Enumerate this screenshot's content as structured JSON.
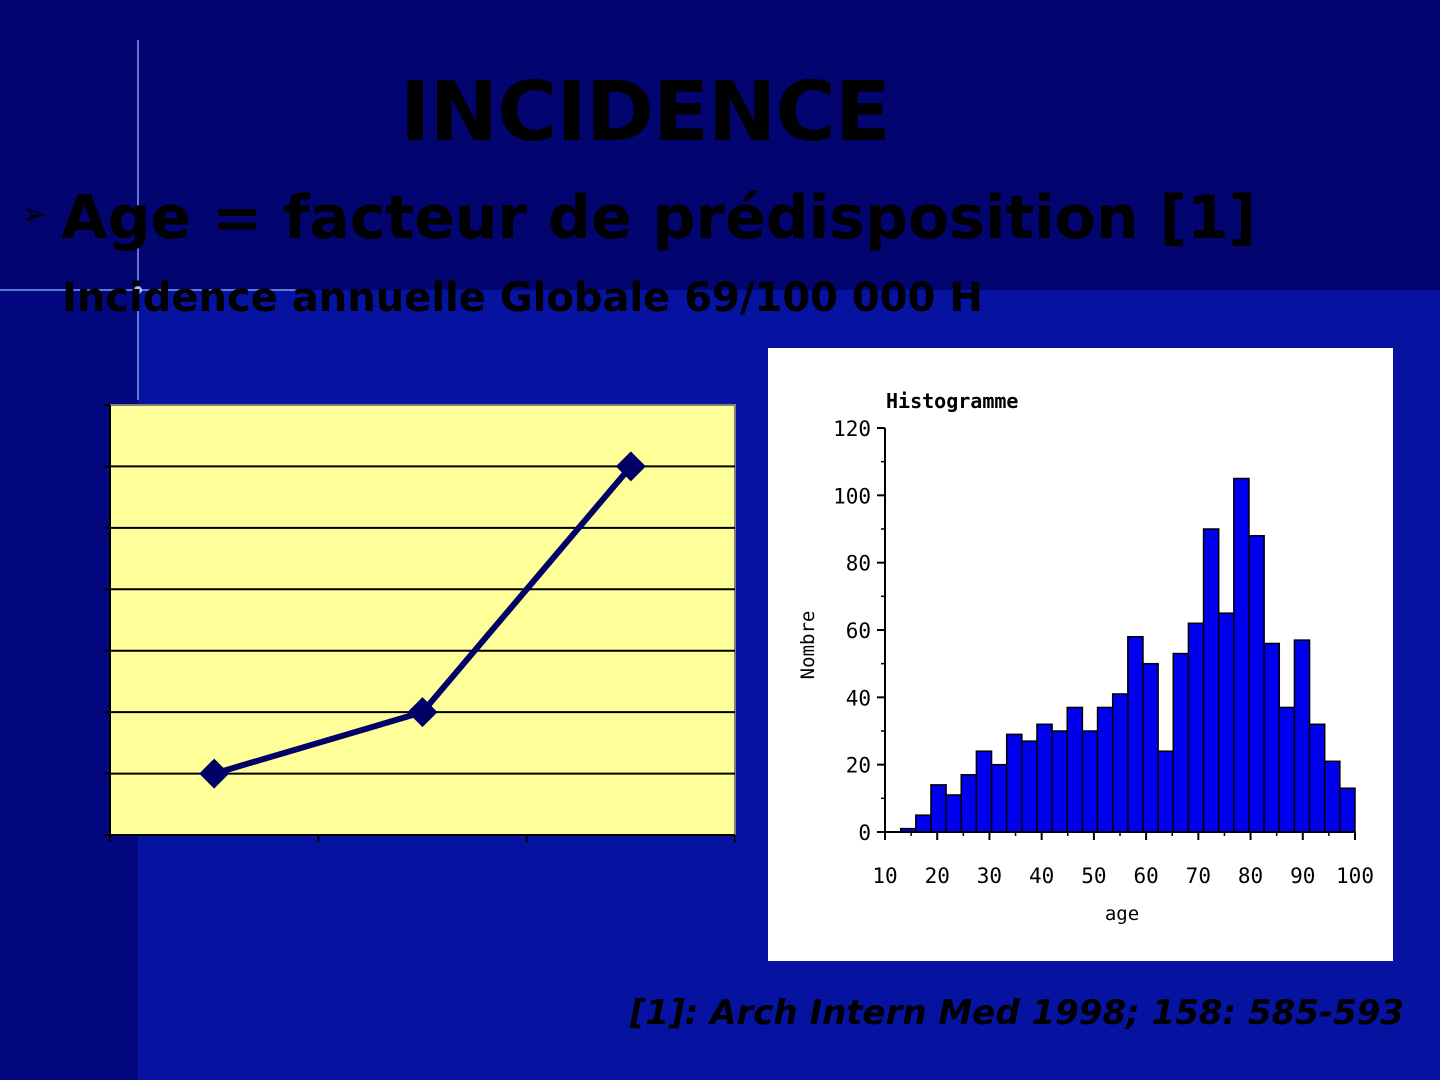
{
  "slide": {
    "title": "INCIDENCE",
    "bullet_marker": "➢",
    "bullet": "Age = facteur de prédisposition [1]",
    "subtitle": "Incidence annuelle Globale 69/100 000 H",
    "reference": "[1]: Arch Intern Med 1998; 158: 585-593"
  },
  "colors": {
    "background": "#050a85",
    "line_plot_area": "#ffff99",
    "line_series": "#000066",
    "hist_bars": "#0000ee"
  },
  "chart_data": [
    {
      "type": "line",
      "title": "",
      "xlabel": "",
      "ylabel": "",
      "categories": [
        "",
        "",
        ""
      ],
      "values": [
        1,
        2,
        6
      ],
      "ylim": [
        0,
        7
      ],
      "y_gridlines": 7,
      "x_ticks": 3,
      "grid": true,
      "legend": "none",
      "marker": "diamond"
    },
    {
      "type": "bar",
      "title": "Histogramme",
      "xlabel": "age",
      "ylabel": "Nombre",
      "xlim": [
        10,
        100
      ],
      "ylim": [
        0,
        120
      ],
      "x_ticks": [
        10,
        20,
        30,
        40,
        50,
        60,
        70,
        80,
        90,
        100
      ],
      "y_ticks": [
        0,
        20,
        40,
        60,
        80,
        100,
        120
      ],
      "bin_width": 2.9,
      "bin_start": 13,
      "values": [
        1,
        5,
        14,
        11,
        17,
        24,
        20,
        29,
        27,
        32,
        30,
        37,
        30,
        37,
        41,
        58,
        50,
        24,
        53,
        62,
        90,
        65,
        105,
        88,
        56,
        37,
        57,
        32,
        21,
        13
      ],
      "grid": false,
      "legend": "none"
    }
  ]
}
